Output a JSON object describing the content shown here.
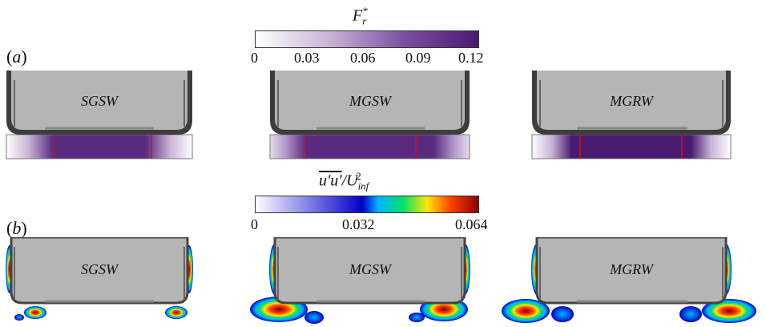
{
  "row_a": {
    "panel_label": "(a)",
    "colorbar": {
      "title_base": "F",
      "title_sub": "r",
      "title_sup": "*",
      "ticks": [
        "0",
        "0.03",
        "0.06",
        "0.09",
        "0.12"
      ],
      "colors": [
        "#ffffff",
        "#c9b3d6",
        "#7b4fa0",
        "#4a1a6f"
      ]
    },
    "vehicles": [
      {
        "label": "SGSW"
      },
      {
        "label": "MGSW"
      },
      {
        "label": "MGRW"
      }
    ]
  },
  "row_b": {
    "panel_label": "(b)",
    "colorbar": {
      "title_main": "u'u'",
      "title_rest": "/U",
      "title_sup": "2",
      "title_sub": "inf",
      "ticks": [
        "0",
        "0.032",
        "0.064"
      ],
      "colors": [
        "#ffffff",
        "#0000c8",
        "#00b4ff",
        "#00e06e",
        "#ffe600",
        "#ff3c00",
        "#8b0000"
      ]
    },
    "vehicles": [
      {
        "label": "SGSW"
      },
      {
        "label": "MGSW"
      },
      {
        "label": "MGRW"
      }
    ]
  }
}
